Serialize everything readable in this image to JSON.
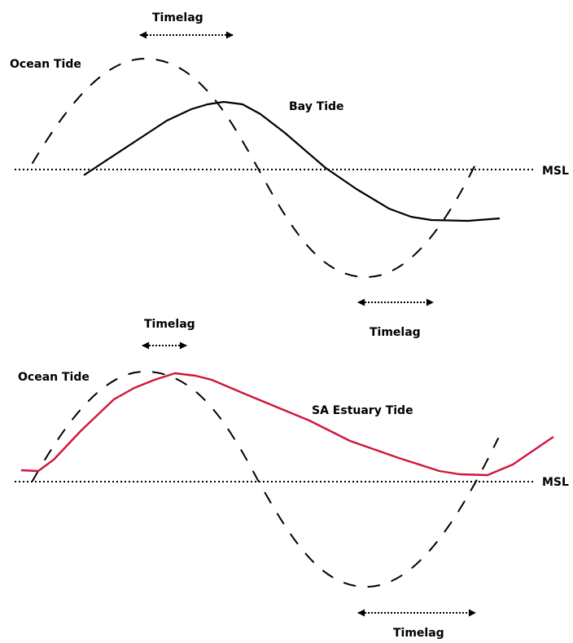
{
  "colors": {
    "ink": "#000000",
    "estuary_tide": "#d0143c",
    "background": "#ffffff"
  },
  "upper_panel": {
    "ocean_tide_label": "Ocean Tide",
    "other_tide_label": "Bay Tide",
    "msl_label": "MSL",
    "timelag_top_label": "Timelag",
    "timelag_bottom_label": "Timelag"
  },
  "lower_panel": {
    "ocean_tide_label": "Ocean Tide",
    "other_tide_label": "SA Estuary Tide",
    "msl_label": "MSL",
    "timelag_top_label": "Timelag",
    "timelag_bottom_label": "Timelag"
  }
}
